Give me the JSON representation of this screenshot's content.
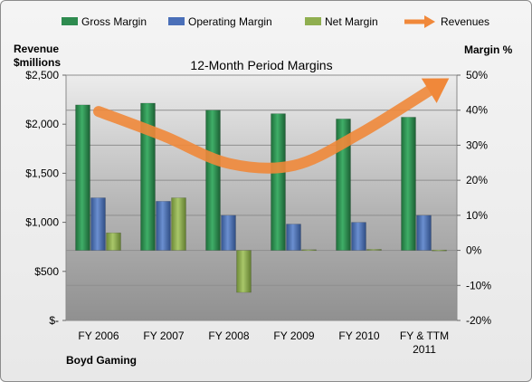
{
  "chart_data": {
    "type": "bar",
    "title": "12-Month Period Margins",
    "left_axis_title_line1": "Revenue",
    "left_axis_title_line2": "$millions",
    "right_axis_title": "Margin %",
    "footnote": "Boyd Gaming",
    "categories": [
      "FY 2006",
      "FY 2007",
      "FY 2008",
      "FY 2009",
      "FY 2010",
      "FY & TTM 2011"
    ],
    "category_label_lines": [
      [
        "FY 2006"
      ],
      [
        "FY 2007"
      ],
      [
        "FY 2008"
      ],
      [
        "FY 2009"
      ],
      [
        "FY 2010"
      ],
      [
        "FY & TTM",
        "2011"
      ]
    ],
    "left_axis": {
      "ticks": [
        "$-",
        "$500",
        "$1,000",
        "$1,500",
        "$2,000",
        "$2,500"
      ],
      "range": [
        0,
        2500
      ]
    },
    "right_axis": {
      "ticks": [
        "-20%",
        "-10%",
        "0%",
        "10%",
        "20%",
        "30%",
        "40%",
        "50%"
      ],
      "range": [
        -20,
        50
      ]
    },
    "series": [
      {
        "name": "Gross Margin",
        "kind": "bar",
        "axis": "right",
        "color": "#2e8b4f",
        "values": [
          41.5,
          42,
          40,
          39,
          37.5,
          38
        ]
      },
      {
        "name": "Operating Margin",
        "kind": "bar",
        "axis": "right",
        "color": "#4a6fb8",
        "values": [
          15,
          14,
          10,
          7.5,
          8,
          10
        ]
      },
      {
        "name": "Net Margin",
        "kind": "bar",
        "axis": "right",
        "color": "#8fae4f",
        "values": [
          5,
          15,
          -12,
          0.2,
          0.3,
          0.1
        ]
      },
      {
        "name": "Revenues",
        "kind": "arrow",
        "axis": "left",
        "color": "#f0883a",
        "values": [
          2130,
          1880,
          1600,
          1580,
          1900,
          2380
        ]
      }
    ],
    "grid": true,
    "legend_position": "top"
  }
}
